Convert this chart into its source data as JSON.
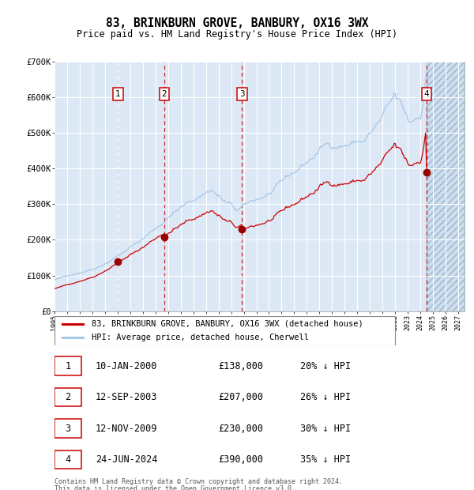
{
  "title": "83, BRINKBURN GROVE, BANBURY, OX16 3WX",
  "subtitle": "Price paid vs. HM Land Registry's House Price Index (HPI)",
  "legend_line1": "83, BRINKBURN GROVE, BANBURY, OX16 3WX (detached house)",
  "legend_line2": "HPI: Average price, detached house, Cherwell",
  "footnote1": "Contains HM Land Registry data © Crown copyright and database right 2024.",
  "footnote2": "This data is licensed under the Open Government Licence v3.0.",
  "transactions": [
    {
      "num": 1,
      "date": "10-JAN-2000",
      "price": 138000,
      "pct": "20%",
      "x_year": 2000.03
    },
    {
      "num": 2,
      "date": "12-SEP-2003",
      "price": 207000,
      "pct": "26%",
      "x_year": 2003.7
    },
    {
      "num": 3,
      "date": "12-NOV-2009",
      "price": 230000,
      "pct": "30%",
      "x_year": 2009.87
    },
    {
      "num": 4,
      "date": "24-JUN-2024",
      "price": 390000,
      "pct": "35%",
      "x_year": 2024.48
    }
  ],
  "hpi_color": "#a8c8e8",
  "price_color": "#cc0000",
  "dot_color": "#990000",
  "vline_color": "#cc0000",
  "bg_color": "#dce8f5",
  "ylim": [
    0,
    700000
  ],
  "xlim_start": 1995.0,
  "xlim_end": 2027.5,
  "future_x": 2024.48
}
